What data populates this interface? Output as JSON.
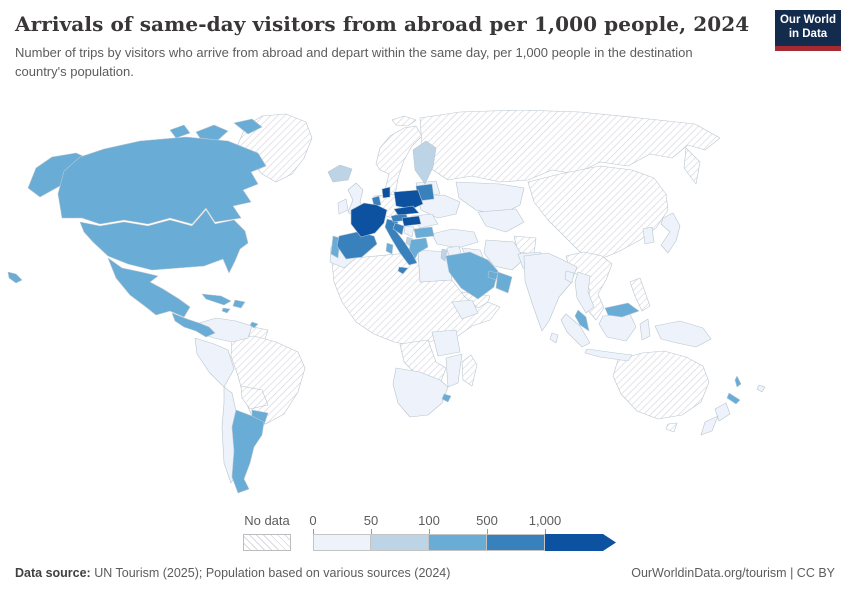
{
  "header": {
    "title": "Arrivals of same-day visitors from abroad per 1,000 people, 2024",
    "subtitle": "Number of trips by visitors who arrive from abroad and depart within the same day, per 1,000 people in the destination country's population.",
    "logo": {
      "line1": "Our World",
      "line2": "in Data"
    }
  },
  "legend": {
    "no_data_label": "No data",
    "ticks": [
      "0",
      "50",
      "100",
      "500",
      "1,000"
    ],
    "bins": [
      {
        "id": "0-50",
        "label": "0–50",
        "color": "#edf2fb"
      },
      {
        "id": "50-100",
        "label": "50–100",
        "color": "#bcd4e6"
      },
      {
        "id": "100-500",
        "label": "100–500",
        "color": "#69acd6"
      },
      {
        "id": "500-1000",
        "label": "500–1,000",
        "color": "#3981bd"
      },
      {
        "id": "1000+",
        "label": "1,000+",
        "color": "#0c52a0"
      }
    ]
  },
  "footer": {
    "source_bold": "Data source:",
    "source_rest": " UN Tourism (2025); Population based on various sources (2024)",
    "right_text": "OurWorldinData.org/tourism | CC BY"
  },
  "colors": {
    "logo_bg": "#132c4e",
    "logo_accent": "#a52a32",
    "map_border": "#b9c6cf",
    "hatch_line": "#d6d6df",
    "title": "#383636",
    "body_text": "#5c5c5c"
  },
  "chart_data": {
    "type": "choropleth",
    "title": "Arrivals of same-day visitors from abroad per 1,000 people, 2024",
    "year": 2024,
    "unit": "same-day visitor arrivals per 1,000 people",
    "bin_edges": [
      0,
      50,
      100,
      500,
      1000
    ],
    "no_data_style": "hatched",
    "regions": [
      {
        "id": "canada",
        "name": "Canada",
        "bin": "100-500"
      },
      {
        "id": "usa",
        "name": "United States",
        "bin": "100-500"
      },
      {
        "id": "mexico",
        "name": "Mexico",
        "bin": "100-500"
      },
      {
        "id": "central-america",
        "name": "Central America (various)",
        "bin": "100-500"
      },
      {
        "id": "cuba",
        "name": "Cuba",
        "bin": "100-500"
      },
      {
        "id": "hispaniola",
        "name": "Haiti & Dominican Republic",
        "bin": "100-500"
      },
      {
        "id": "jamaica",
        "name": "Jamaica",
        "bin": "100-500"
      },
      {
        "id": "trinidad",
        "name": "Trinidad and Tobago",
        "bin": "100-500"
      },
      {
        "id": "greenland",
        "name": "Greenland",
        "bin": "no-data"
      },
      {
        "id": "colombia-venezuela",
        "name": "Colombia & Venezuela",
        "bin": "0-50"
      },
      {
        "id": "guyana-suriname",
        "name": "Guyana & Suriname",
        "bin": "no-data"
      },
      {
        "id": "ecuador-peru",
        "name": "Ecuador & Peru",
        "bin": "0-50"
      },
      {
        "id": "brazil",
        "name": "Brazil",
        "bin": "no-data"
      },
      {
        "id": "bolivia",
        "name": "Bolivia",
        "bin": "no-data"
      },
      {
        "id": "chile",
        "name": "Chile",
        "bin": "0-50"
      },
      {
        "id": "paraguay",
        "name": "Paraguay",
        "bin": "100-500"
      },
      {
        "id": "argentina",
        "name": "Argentina",
        "bin": "100-500"
      },
      {
        "id": "iceland",
        "name": "Iceland",
        "bin": "50-100"
      },
      {
        "id": "uk",
        "name": "United Kingdom",
        "bin": "0-50"
      },
      {
        "id": "ireland",
        "name": "Ireland",
        "bin": "0-50"
      },
      {
        "id": "norway-sweden",
        "name": "Norway & Sweden",
        "bin": "no-data"
      },
      {
        "id": "svalbard",
        "name": "Svalbard",
        "bin": "no-data"
      },
      {
        "id": "finland",
        "name": "Finland",
        "bin": "50-100"
      },
      {
        "id": "baltics",
        "name": "Estonia, Latvia & Lithuania",
        "bin": "500-1000"
      },
      {
        "id": "denmark",
        "name": "Denmark",
        "bin": "1000+"
      },
      {
        "id": "germany",
        "name": "Germany & Switzerland",
        "bin": "no-data"
      },
      {
        "id": "benelux",
        "name": "Belgium & Netherlands",
        "bin": "500-1000"
      },
      {
        "id": "france",
        "name": "France",
        "bin": "1000+"
      },
      {
        "id": "spain",
        "name": "Spain",
        "bin": "500-1000"
      },
      {
        "id": "portugal",
        "name": "Portugal",
        "bin": "100-500"
      },
      {
        "id": "italy",
        "name": "Italy",
        "bin": "500-1000"
      },
      {
        "id": "sardinia",
        "name": "Sardinia (Italy)",
        "bin": "100-500"
      },
      {
        "id": "austria",
        "name": "Austria",
        "bin": "500-1000"
      },
      {
        "id": "czech-slovakia",
        "name": "Czechia & Slovakia",
        "bin": "1000+"
      },
      {
        "id": "poland",
        "name": "Poland",
        "bin": "1000+"
      },
      {
        "id": "hungary",
        "name": "Hungary",
        "bin": "1000+"
      },
      {
        "id": "slovenia-croatia",
        "name": "Slovenia & Croatia",
        "bin": "500-1000"
      },
      {
        "id": "serbia",
        "name": "Serbia",
        "bin": "0-50"
      },
      {
        "id": "albania",
        "name": "Albania",
        "bin": "50-100"
      },
      {
        "id": "greece",
        "name": "Greece",
        "bin": "100-500"
      },
      {
        "id": "bulgaria",
        "name": "Bulgaria",
        "bin": "100-500"
      },
      {
        "id": "romania",
        "name": "Romania",
        "bin": "0-50"
      },
      {
        "id": "belarus",
        "name": "Belarus",
        "bin": "0-50"
      },
      {
        "id": "ukraine",
        "name": "Ukraine",
        "bin": "0-50"
      },
      {
        "id": "russia",
        "name": "Russia",
        "bin": "no-data"
      },
      {
        "id": "kazakhstan",
        "name": "Kazakhstan",
        "bin": "0-50"
      },
      {
        "id": "central-asia",
        "name": "Central Asia (various)",
        "bin": "0-50"
      },
      {
        "id": "turkey",
        "name": "Turkey",
        "bin": "0-50"
      },
      {
        "id": "syria-jordan",
        "name": "Syria & Jordan",
        "bin": "0-50"
      },
      {
        "id": "israel-lebanon",
        "name": "Israel & Lebanon",
        "bin": "50-100"
      },
      {
        "id": "iraq",
        "name": "Iraq",
        "bin": "0-50"
      },
      {
        "id": "iran",
        "name": "Iran",
        "bin": "0-50"
      },
      {
        "id": "saudi-arabia",
        "name": "Saudi Arabia",
        "bin": "100-500"
      },
      {
        "id": "uae-qatar",
        "name": "UAE & Qatar",
        "bin": "100-500"
      },
      {
        "id": "oman",
        "name": "Oman",
        "bin": "100-500"
      },
      {
        "id": "yemen",
        "name": "Yemen",
        "bin": "no-data"
      },
      {
        "id": "egypt",
        "name": "Egypt",
        "bin": "0-50"
      },
      {
        "id": "morocco",
        "name": "Morocco",
        "bin": "0-50"
      },
      {
        "id": "north-africa",
        "name": "North & West Africa (various)",
        "bin": "no-data"
      },
      {
        "id": "central-africa",
        "name": "Central Africa (various)",
        "bin": "no-data"
      },
      {
        "id": "ethiopia",
        "name": "Ethiopia",
        "bin": "0-50"
      },
      {
        "id": "tanzania",
        "name": "Tanzania",
        "bin": "0-50"
      },
      {
        "id": "mozambique",
        "name": "Mozambique",
        "bin": "0-50"
      },
      {
        "id": "southern-africa",
        "name": "South Africa, Namibia & Botswana",
        "bin": "0-50"
      },
      {
        "id": "eswatini",
        "name": "Eswatini",
        "bin": "100-500"
      },
      {
        "id": "madagascar",
        "name": "Madagascar",
        "bin": "no-data"
      },
      {
        "id": "afghanistan",
        "name": "Afghanistan",
        "bin": "no-data"
      },
      {
        "id": "pakistan",
        "name": "Pakistan",
        "bin": "0-50"
      },
      {
        "id": "india",
        "name": "India",
        "bin": "0-50"
      },
      {
        "id": "bangladesh",
        "name": "Bangladesh",
        "bin": "0-50"
      },
      {
        "id": "sri-lanka",
        "name": "Sri Lanka",
        "bin": "0-50"
      },
      {
        "id": "china-mongolia",
        "name": "China & Mongolia",
        "bin": "no-data"
      },
      {
        "id": "korea",
        "name": "South Korea",
        "bin": "0-50"
      },
      {
        "id": "japan",
        "name": "Japan",
        "bin": "0-50"
      },
      {
        "id": "se-asia-mainland",
        "name": "Myanmar, Laos, Vietnam & Cambodia",
        "bin": "no-data"
      },
      {
        "id": "thailand",
        "name": "Thailand",
        "bin": "0-50"
      },
      {
        "id": "malaysia",
        "name": "Malaysia",
        "bin": "100-500"
      },
      {
        "id": "indonesia",
        "name": "Indonesia",
        "bin": "0-50"
      },
      {
        "id": "philippines",
        "name": "Philippines",
        "bin": "no-data"
      },
      {
        "id": "papua",
        "name": "Papua New Guinea",
        "bin": "0-50"
      },
      {
        "id": "australia",
        "name": "Australia",
        "bin": "no-data"
      },
      {
        "id": "new-zealand",
        "name": "New Zealand",
        "bin": "0-50"
      },
      {
        "id": "fiji",
        "name": "Fiji",
        "bin": "0-50"
      },
      {
        "id": "vanuatu",
        "name": "Vanuatu",
        "bin": "100-500"
      },
      {
        "id": "new-caledonia",
        "name": "New Caledonia",
        "bin": "100-500"
      }
    ]
  }
}
